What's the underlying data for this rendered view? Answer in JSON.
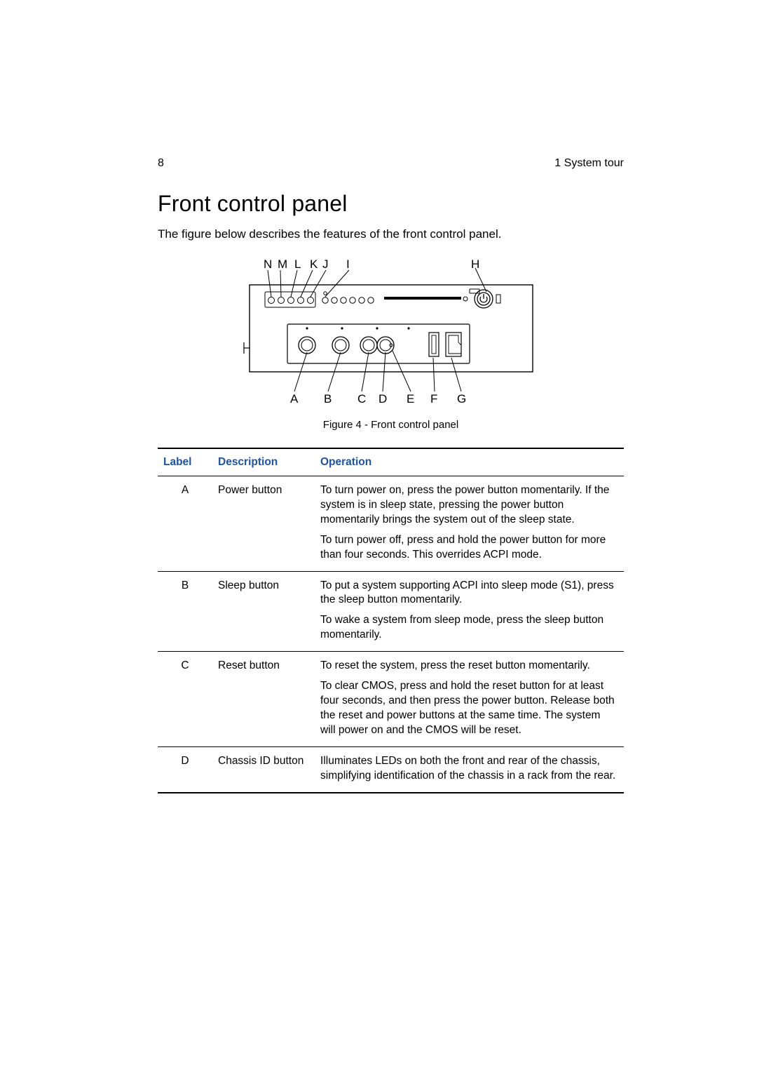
{
  "header": {
    "page_number": "8",
    "section": "1 System tour"
  },
  "title": "Front control panel",
  "intro": "The figure below describes the features of the front control panel.",
  "figure": {
    "caption": "Figure 4 - Front control panel",
    "top_labels": [
      "N",
      "M",
      "L",
      "K",
      "J",
      "I",
      "H"
    ],
    "bottom_labels": [
      "A",
      "B",
      "C",
      "D",
      "E",
      "F",
      "G"
    ],
    "colors": {
      "stroke": "#000000",
      "fill": "#ffffff"
    }
  },
  "table": {
    "headers": {
      "label": "Label",
      "description": "Description",
      "operation": "Operation"
    },
    "header_color": "#1c54a3",
    "rows": [
      {
        "label": "A",
        "description": "Power button",
        "operation": [
          "To turn power on, press the power button momentarily.  If the system is in sleep state, pressing the power button momentarily brings the system out of the sleep state.",
          "To turn power off, press and hold the power button for more than four seconds.  This overrides ACPI mode."
        ]
      },
      {
        "label": "B",
        "description": "Sleep button",
        "operation": [
          "To put a system supporting ACPI into sleep mode (S1), press the sleep button momentarily.",
          "To wake a system from sleep mode, press the sleep button momentarily."
        ]
      },
      {
        "label": "C",
        "description": "Reset button",
        "operation": [
          "To reset the system, press the reset button momentarily.",
          "To clear CMOS, press and hold the reset button for at least four seconds, and then press the power button.  Release both the reset and power buttons at the same time.  The system will power on and the CMOS will be reset."
        ]
      },
      {
        "label": "D",
        "description": "Chassis ID button",
        "operation": [
          "Illuminates LEDs on both the front and rear of the chassis, simplifying identification of the chassis in a rack from the rear."
        ]
      }
    ]
  }
}
